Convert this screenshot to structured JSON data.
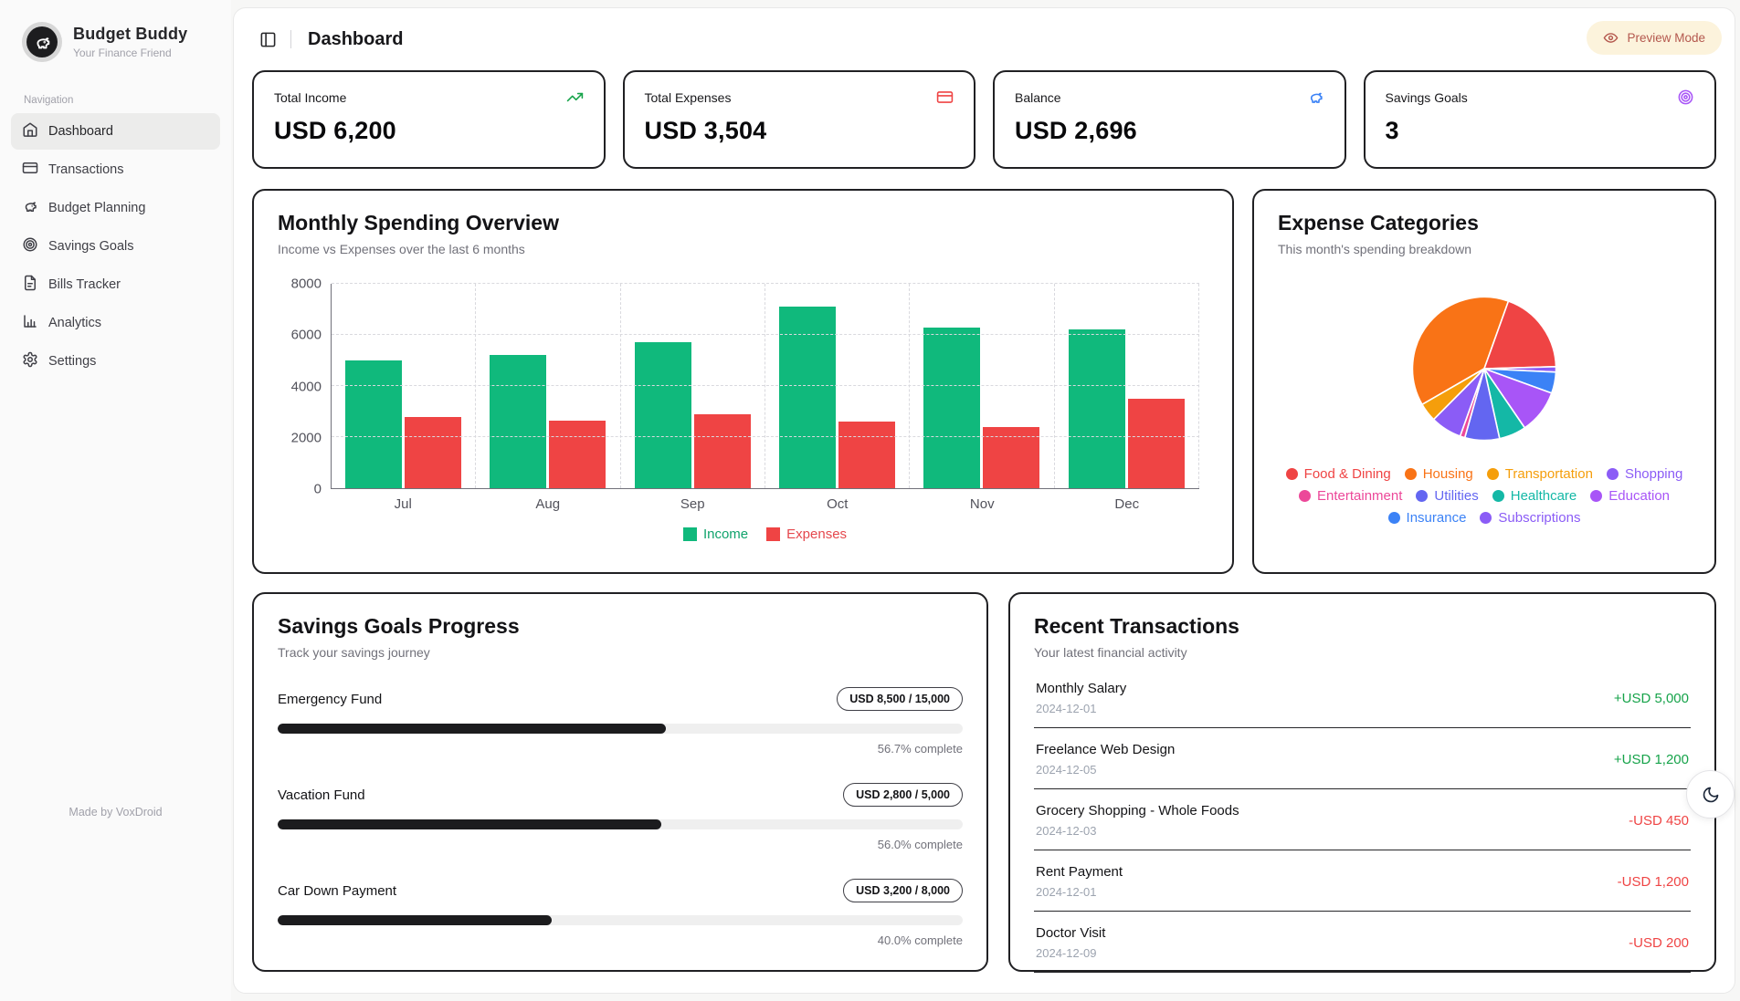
{
  "app": {
    "name": "Budget Buddy",
    "tagline": "Your Finance Friend",
    "made_by": "Made by VoxDroid"
  },
  "sidebar": {
    "section_label": "Navigation",
    "items": [
      {
        "label": "Dashboard",
        "icon": "home-icon",
        "active": true
      },
      {
        "label": "Transactions",
        "icon": "credit-card-icon",
        "active": false
      },
      {
        "label": "Budget Planning",
        "icon": "piggy-bank-icon",
        "active": false
      },
      {
        "label": "Savings Goals",
        "icon": "target-icon",
        "active": false
      },
      {
        "label": "Bills Tracker",
        "icon": "file-text-icon",
        "active": false
      },
      {
        "label": "Analytics",
        "icon": "bar-chart-icon",
        "active": false
      },
      {
        "label": "Settings",
        "icon": "gear-icon",
        "active": false
      }
    ]
  },
  "header": {
    "title": "Dashboard",
    "preview_badge": {
      "label": "Preview Mode",
      "bg": "#fcf3dc",
      "color": "#b4584e",
      "icon": "eye-icon"
    }
  },
  "stats": {
    "cards": [
      {
        "label": "Total Income",
        "value": "USD 6,200",
        "icon": "trending-up-icon",
        "icon_color": "#16a34a"
      },
      {
        "label": "Total Expenses",
        "value": "USD 3,504",
        "icon": "credit-card-icon",
        "icon_color": "#ef4444"
      },
      {
        "label": "Balance",
        "value": "USD 2,696",
        "icon": "piggy-bank-icon",
        "icon_color": "#3b82f6"
      },
      {
        "label": "Savings Goals",
        "value": "3",
        "icon": "target-icon",
        "icon_color": "#a855f7"
      }
    ]
  },
  "chart_data": [
    {
      "type": "bar",
      "title": "Monthly Spending Overview",
      "subtitle": "Income vs Expenses over the last 6 months",
      "categories": [
        "Jul",
        "Aug",
        "Sep",
        "Oct",
        "Nov",
        "Dec"
      ],
      "series": [
        {
          "name": "Income",
          "color": "#10b97c",
          "text_color": "#10a36c",
          "values": [
            5000,
            5200,
            5700,
            7100,
            6300,
            6200
          ]
        },
        {
          "name": "Expenses",
          "color": "#ef4444",
          "text_color": "#e5484d",
          "values": [
            2800,
            2650,
            2900,
            2600,
            2400,
            3504
          ]
        }
      ],
      "ylim": [
        0,
        8000
      ],
      "yticks": [
        0,
        2000,
        4000,
        6000,
        8000
      ],
      "grid": true,
      "legend_position": "bottom"
    },
    {
      "type": "pie",
      "title": "Expense Categories",
      "subtitle": "This month's spending breakdown",
      "legend_position": "bottom",
      "rotation_deg": 240,
      "slices": [
        {
          "label": "Food & Dining",
          "color": "#ef4444",
          "pct": 19.1,
          "est_usd": 670
        },
        {
          "label": "Housing",
          "color": "#f97316",
          "pct": 38.8,
          "est_usd": 1360
        },
        {
          "label": "Transportation",
          "color": "#f59e0b",
          "pct": 4.2,
          "est_usd": 147
        },
        {
          "label": "Shopping",
          "color": "#8b5cf6",
          "pct": 7.0,
          "est_usd": 245
        },
        {
          "label": "Entertainment",
          "color": "#ec4899",
          "pct": 1.1,
          "est_usd": 39
        },
        {
          "label": "Utilities",
          "color": "#6366f1",
          "pct": 7.8,
          "est_usd": 273
        },
        {
          "label": "Healthcare",
          "color": "#14b8a6",
          "pct": 6.1,
          "est_usd": 214
        },
        {
          "label": "Education",
          "color": "#a855f7",
          "pct": 9.9,
          "est_usd": 347
        },
        {
          "label": "Insurance",
          "color": "#3b82f6",
          "pct": 4.8,
          "est_usd": 168
        },
        {
          "label": "Subscriptions",
          "color": "#8b5cf6",
          "pct": 1.2,
          "est_usd": 42
        }
      ],
      "draw_order": [
        "Housing",
        "Food & Dining",
        "Subscriptions",
        "Insurance",
        "Education",
        "Healthcare",
        "Utilities",
        "Entertainment",
        "Shopping",
        "Transportation"
      ]
    }
  ],
  "goals": {
    "title": "Savings Goals Progress",
    "subtitle": "Track your savings journey",
    "items": [
      {
        "name": "Emergency Fund",
        "badge": "USD 8,500 / 15,000",
        "percent": 56.7,
        "percent_label": "56.7% complete"
      },
      {
        "name": "Vacation Fund",
        "badge": "USD 2,800 / 5,000",
        "percent": 56.0,
        "percent_label": "56.0% complete"
      },
      {
        "name": "Car Down Payment",
        "badge": "USD 3,200 / 8,000",
        "percent": 40.0,
        "percent_label": "40.0% complete"
      }
    ]
  },
  "transactions": {
    "title": "Recent Transactions",
    "subtitle": "Your latest financial activity",
    "positive_color": "#16a34a",
    "negative_color": "#ef4444",
    "items": [
      {
        "name": "Monthly Salary",
        "date": "2024-12-01",
        "amount": "+USD 5,000"
      },
      {
        "name": "Freelance Web Design",
        "date": "2024-12-05",
        "amount": "+USD 1,200"
      },
      {
        "name": "Grocery Shopping - Whole Foods",
        "date": "2024-12-03",
        "amount": "-USD 450"
      },
      {
        "name": "Rent Payment",
        "date": "2024-12-01",
        "amount": "-USD 1,200"
      },
      {
        "name": "Doctor Visit",
        "date": "2024-12-09",
        "amount": "-USD 200"
      }
    ]
  }
}
